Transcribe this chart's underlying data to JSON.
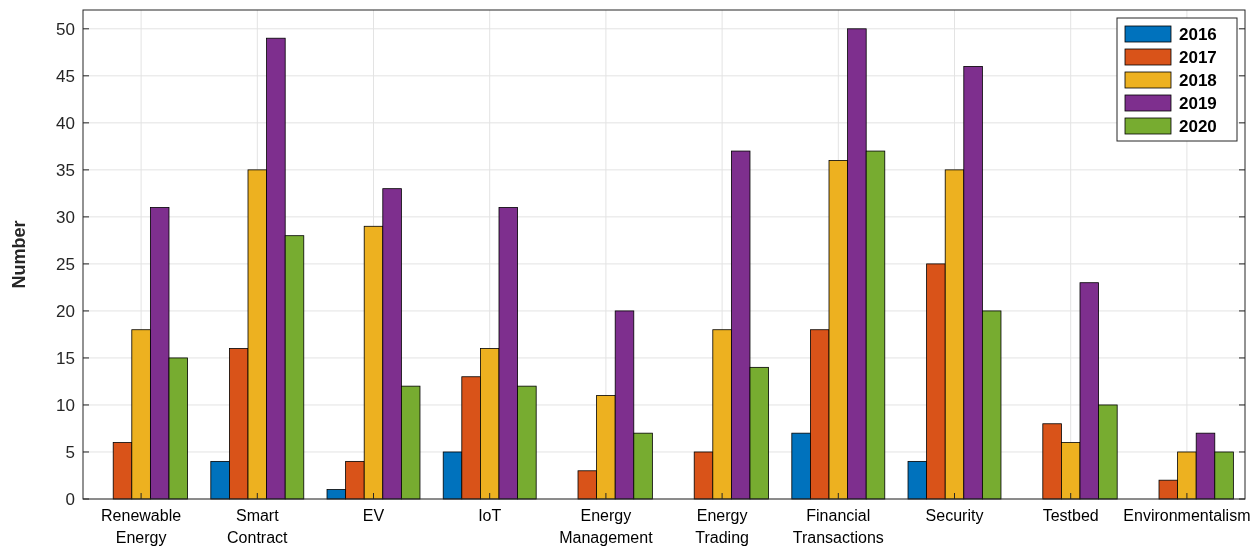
{
  "chart_data": {
    "type": "bar",
    "ylabel": "Number",
    "categories": [
      "Renewable Energy",
      "Smart Contract",
      "EV",
      "IoT",
      "Energy Management",
      "Energy Trading",
      "Financial Transactions",
      "Security",
      "Testbed",
      "Environmentalism"
    ],
    "series": [
      {
        "name": "2016",
        "color": "#0072bd",
        "values": [
          0,
          4,
          1,
          5,
          0,
          0,
          7,
          4,
          0,
          0
        ]
      },
      {
        "name": "2017",
        "color": "#d95319",
        "values": [
          6,
          16,
          4,
          13,
          3,
          5,
          18,
          25,
          8,
          2
        ]
      },
      {
        "name": "2018",
        "color": "#edb120",
        "values": [
          18,
          35,
          29,
          16,
          11,
          18,
          36,
          35,
          6,
          5
        ]
      },
      {
        "name": "2019",
        "color": "#7e2f8e",
        "values": [
          31,
          49,
          33,
          31,
          20,
          37,
          50,
          46,
          23,
          7
        ]
      },
      {
        "name": "2020",
        "color": "#77ac30",
        "values": [
          15,
          28,
          12,
          12,
          7,
          14,
          37,
          20,
          10,
          5
        ]
      }
    ],
    "ylim": [
      0,
      52
    ],
    "yticks": [
      0,
      5,
      10,
      15,
      20,
      25,
      30,
      35,
      40,
      45,
      50
    ],
    "grid": true,
    "legend": "top right"
  }
}
